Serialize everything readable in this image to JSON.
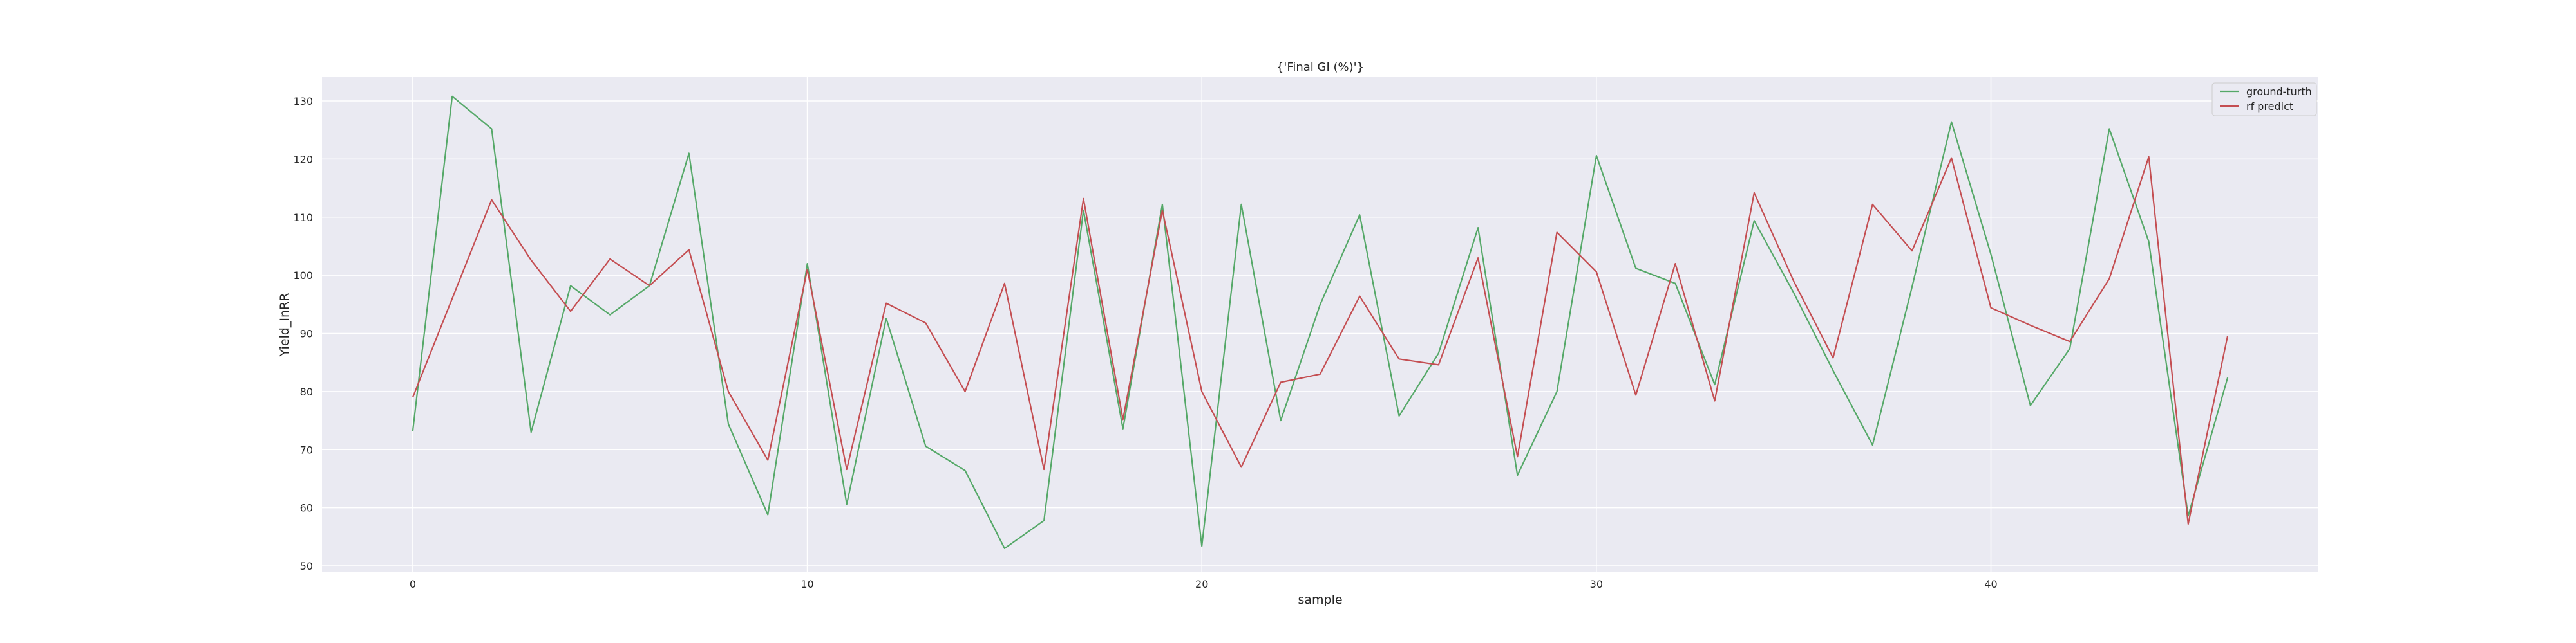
{
  "chart_data": {
    "type": "line",
    "title": "{'Final GI (%)'}",
    "xlabel": "sample",
    "ylabel": "Yield_InRR",
    "xlim": [
      -2.3,
      48.3
    ],
    "ylim": [
      48.9,
      134.1
    ],
    "xticks": [
      0,
      10,
      20,
      30,
      40
    ],
    "yticks": [
      50,
      60,
      70,
      80,
      90,
      100,
      110,
      120,
      130
    ],
    "grid": true,
    "legend_position": "top-right",
    "x": [
      0,
      1,
      2,
      3,
      4,
      5,
      6,
      7,
      8,
      9,
      10,
      11,
      12,
      13,
      14,
      15,
      16,
      17,
      18,
      19,
      20,
      21,
      22,
      23,
      24,
      25,
      26,
      27,
      28,
      29,
      30,
      31,
      32,
      33,
      34,
      35,
      36,
      37,
      38,
      39,
      40,
      41,
      42,
      43,
      44,
      45,
      46
    ],
    "series": [
      {
        "name": "ground-turth",
        "color": "#55a868",
        "values": [
          73.2,
          130.8,
          125.2,
          73.0,
          98.2,
          93.2,
          98.2,
          121.0,
          74.4,
          58.8,
          102.0,
          60.6,
          92.6,
          70.6,
          66.4,
          53.0,
          57.8,
          111.2,
          73.6,
          112.2,
          53.4,
          112.2,
          75.0,
          95.0,
          110.4,
          75.8,
          86.6,
          108.2,
          65.6,
          80.0,
          120.6,
          101.2,
          98.6,
          81.2,
          109.4,
          97.0,
          83.6,
          70.8,
          98.0,
          126.4,
          103.6,
          77.6,
          87.4,
          125.2,
          105.8,
          58.6,
          82.4
        ]
      },
      {
        "name": "rf predict",
        "color": "#c44e52",
        "values": [
          79.0,
          96.0,
          113.0,
          102.6,
          93.8,
          102.8,
          98.2,
          104.4,
          80.0,
          68.2,
          101.0,
          66.6,
          95.2,
          91.8,
          80.0,
          98.6,
          66.6,
          113.2,
          75.2,
          111.2,
          80.0,
          67.0,
          81.6,
          83.0,
          96.4,
          85.6,
          84.6,
          103.0,
          68.8,
          107.4,
          100.6,
          79.4,
          102.0,
          78.4,
          114.2,
          99.0,
          85.8,
          112.2,
          104.2,
          120.2,
          94.4,
          91.4,
          88.6,
          99.4,
          120.4,
          57.2,
          89.6
        ]
      }
    ]
  }
}
